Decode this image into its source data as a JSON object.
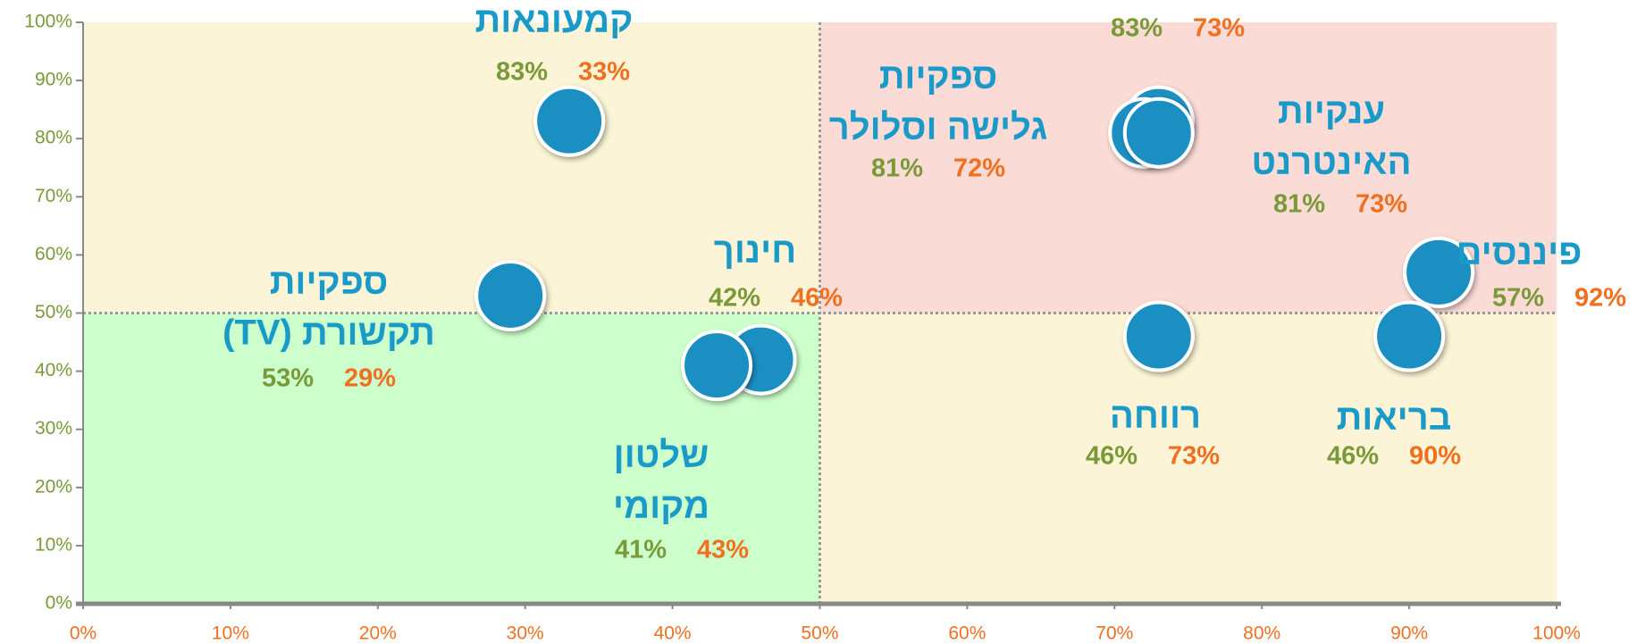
{
  "chart_data": {
    "type": "scatter",
    "categories": [
      [
        "קמעונאות"
      ],
      null,
      [
        "ספקיות",
        "גלישה וסלולר"
      ],
      [
        "ענקיות",
        "האינטרנט"
      ],
      [
        "פיננסים"
      ],
      [
        "בריאות"
      ],
      [
        "רווחה"
      ],
      [
        "חינוך"
      ],
      [
        "שלטון",
        "מקומי"
      ],
      [
        "ספקיות",
        "תקשורת (TV)"
      ]
    ],
    "x": [
      33,
      73,
      72,
      73,
      92,
      90,
      73,
      46,
      43,
      29
    ],
    "x_labels": [
      "33%",
      "73%",
      "72%",
      "73%",
      "92%",
      "90%",
      "73%",
      "46%",
      "43%",
      "29%"
    ],
    "values": [
      83,
      83,
      81,
      81,
      57,
      46,
      46,
      42,
      41,
      53
    ],
    "value_labels": [
      "83%",
      "83%",
      "81%",
      "81%",
      "57%",
      "46%",
      "46%",
      "42%",
      "41%",
      "53%"
    ],
    "xlim": [
      0,
      100
    ],
    "ylim": [
      0,
      100
    ],
    "xticks": [
      {
        "value": 0,
        "label": "0%"
      },
      {
        "value": 10,
        "label": "10%"
      },
      {
        "value": 20,
        "label": "20%"
      },
      {
        "value": 30,
        "label": "30%"
      },
      {
        "value": 40,
        "label": "40%"
      },
      {
        "value": 50,
        "label": "50%"
      },
      {
        "value": 60,
        "label": "60%"
      },
      {
        "value": 70,
        "label": "70%"
      },
      {
        "value": 80,
        "label": "80%"
      },
      {
        "value": 90,
        "label": "90%"
      },
      {
        "value": 100,
        "label": "100%"
      }
    ],
    "yticks": [
      {
        "value": 0,
        "label": "0%"
      },
      {
        "value": 10,
        "label": "10%"
      },
      {
        "value": 20,
        "label": "20%"
      },
      {
        "value": 30,
        "label": "30%"
      },
      {
        "value": 40,
        "label": "40%"
      },
      {
        "value": 50,
        "label": "50%"
      },
      {
        "value": 60,
        "label": "60%"
      },
      {
        "value": 70,
        "label": "70%"
      },
      {
        "value": 80,
        "label": "80%"
      },
      {
        "value": 90,
        "label": "90%"
      },
      {
        "value": 100,
        "label": "100%"
      }
    ],
    "quadrants": {
      "x": 50,
      "y": 50,
      "colors": {
        "top_left": "#fbf4d6",
        "top_right": "#fadbd6",
        "bottom_left": "#ccffcc",
        "bottom_right": "#fbf4d6"
      }
    },
    "color": "#1a8fc2",
    "x_color": "#f07020",
    "y_color": "#7a9a3a"
  }
}
